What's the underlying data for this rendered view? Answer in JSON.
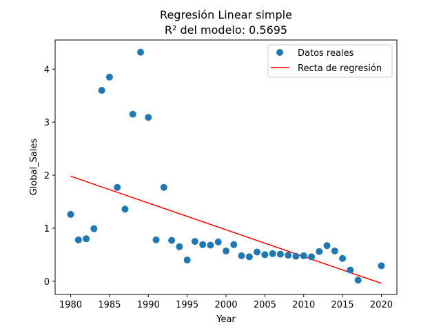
{
  "chart_data": {
    "type": "scatter",
    "title": "Regresión Linear simple",
    "subtitle": "R² del modelo: 0.5695",
    "xlabel": "Year",
    "ylabel": "Global_Sales",
    "xlim": [
      1978,
      2022
    ],
    "ylim": [
      -0.25,
      4.55
    ],
    "xticks": [
      1980,
      1985,
      1990,
      1995,
      2000,
      2005,
      2010,
      2015,
      2020
    ],
    "yticks": [
      0,
      1,
      2,
      3,
      4
    ],
    "grid": false,
    "legend_position": "top-right",
    "series": [
      {
        "name": "Datos reales",
        "type": "scatter",
        "color": "#1f77b4",
        "points": [
          [
            1980,
            1.26
          ],
          [
            1981,
            0.78
          ],
          [
            1982,
            0.8
          ],
          [
            1983,
            0.99
          ],
          [
            1984,
            3.6
          ],
          [
            1985,
            3.85
          ],
          [
            1986,
            1.77
          ],
          [
            1987,
            1.36
          ],
          [
            1988,
            3.15
          ],
          [
            1989,
            4.32
          ],
          [
            1990,
            3.09
          ],
          [
            1991,
            0.78
          ],
          [
            1992,
            1.77
          ],
          [
            1993,
            0.77
          ],
          [
            1994,
            0.65
          ],
          [
            1995,
            0.4
          ],
          [
            1996,
            0.75
          ],
          [
            1997,
            0.69
          ],
          [
            1998,
            0.68
          ],
          [
            1999,
            0.74
          ],
          [
            2000,
            0.57
          ],
          [
            2001,
            0.69
          ],
          [
            2002,
            0.48
          ],
          [
            2003,
            0.46
          ],
          [
            2004,
            0.55
          ],
          [
            2005,
            0.5
          ],
          [
            2006,
            0.52
          ],
          [
            2007,
            0.51
          ],
          [
            2008,
            0.49
          ],
          [
            2009,
            0.47
          ],
          [
            2010,
            0.48
          ],
          [
            2011,
            0.46
          ],
          [
            2012,
            0.56
          ],
          [
            2013,
            0.67
          ],
          [
            2014,
            0.57
          ],
          [
            2015,
            0.43
          ],
          [
            2016,
            0.21
          ],
          [
            2017,
            0.02
          ],
          [
            2020,
            0.29
          ]
        ]
      },
      {
        "name": "Recta de regresión",
        "type": "line",
        "color": "#ff0000",
        "points": [
          [
            1980,
            1.98
          ],
          [
            2020,
            -0.04
          ]
        ]
      }
    ]
  }
}
